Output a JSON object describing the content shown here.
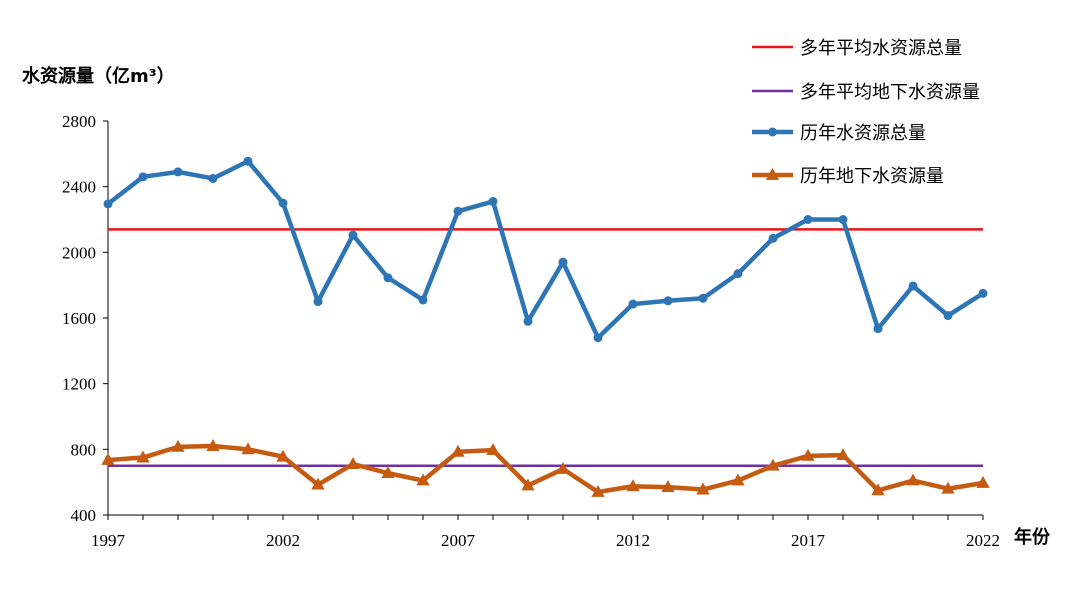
{
  "chart_data": {
    "type": "line",
    "ylabel": "水资源量（亿m³）",
    "xlabel": "年份",
    "ylim": [
      400,
      2800
    ],
    "yticks": [
      400,
      800,
      1200,
      1600,
      2000,
      2400,
      2800
    ],
    "xlim": [
      1997,
      2022
    ],
    "xticks": [
      1997,
      2002,
      2007,
      2012,
      2017,
      2022
    ],
    "legend_position": "top-right",
    "grid": false,
    "x": [
      1997,
      1998,
      1999,
      2000,
      2001,
      2002,
      2003,
      2004,
      2005,
      2006,
      2007,
      2008,
      2009,
      2010,
      2011,
      2012,
      2013,
      2014,
      2015,
      2016,
      2017,
      2018,
      2019,
      2020,
      2021,
      2022
    ],
    "series": [
      {
        "name": "多年平均水资源总量",
        "kind": "reference",
        "color": "#e8141c",
        "values": [
          2140,
          2140,
          2140,
          2140,
          2140,
          2140,
          2140,
          2140,
          2140,
          2140,
          2140,
          2140,
          2140,
          2140,
          2140,
          2140,
          2140,
          2140,
          2140,
          2140,
          2140,
          2140,
          2140,
          2140,
          2140,
          2140
        ]
      },
      {
        "name": "多年平均地下水资源量",
        "kind": "reference",
        "color": "#7030a0",
        "values": [
          700,
          700,
          700,
          700,
          700,
          700,
          700,
          700,
          700,
          700,
          700,
          700,
          700,
          700,
          700,
          700,
          700,
          700,
          700,
          700,
          700,
          700,
          700,
          700,
          700,
          700
        ]
      },
      {
        "name": "历年水资源总量",
        "kind": "marker-circle",
        "color": "#2e75b6",
        "values": [
          2295,
          2460,
          2490,
          2450,
          2555,
          2300,
          1700,
          2105,
          1845,
          1710,
          2250,
          2310,
          1580,
          1940,
          1480,
          1685,
          1705,
          1720,
          1870,
          2085,
          2200,
          2200,
          1535,
          1795,
          1615,
          1750
        ]
      },
      {
        "name": "历年地下水资源量",
        "kind": "marker-triangle",
        "color": "#c55a11",
        "values": [
          735,
          750,
          815,
          820,
          800,
          755,
          585,
          710,
          655,
          610,
          785,
          795,
          580,
          680,
          540,
          575,
          570,
          555,
          610,
          700,
          760,
          765,
          550,
          610,
          560,
          595
        ]
      }
    ]
  }
}
